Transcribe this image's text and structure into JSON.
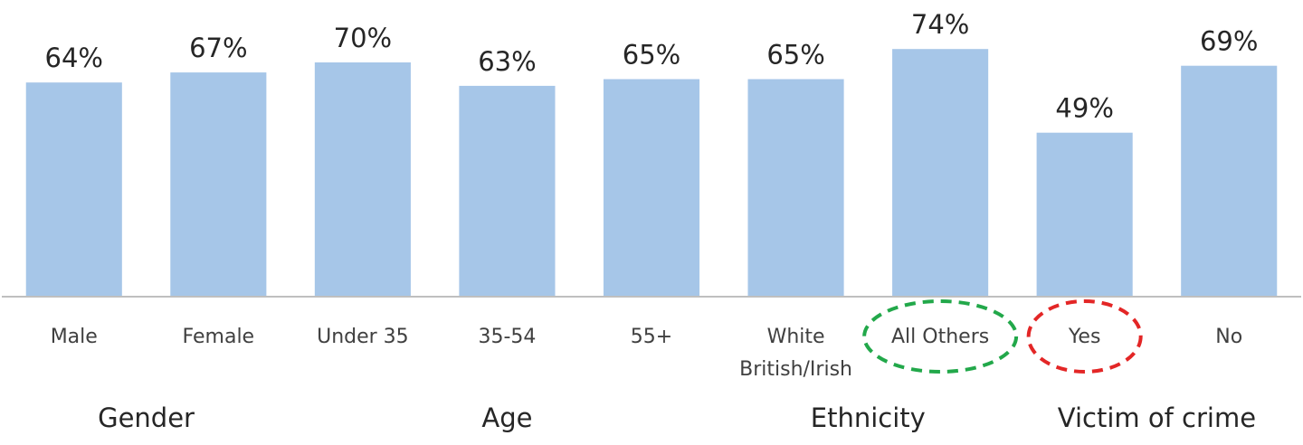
{
  "chart_data": {
    "type": "bar",
    "categories": [
      "Male",
      "Female",
      "Under 35",
      "35-54",
      "55+",
      "White British/Irish",
      "All Others",
      "Yes",
      "No"
    ],
    "category_lines": [
      [
        "Male"
      ],
      [
        "Female"
      ],
      [
        "Under 35"
      ],
      [
        "35-54"
      ],
      [
        "55+"
      ],
      [
        "White",
        "British/Irish"
      ],
      [
        "All Others"
      ],
      [
        "Yes"
      ],
      [
        "No"
      ]
    ],
    "values": [
      64,
      67,
      70,
      63,
      65,
      65,
      74,
      49,
      69
    ],
    "value_labels": [
      "64%",
      "67%",
      "70%",
      "63%",
      "65%",
      "65%",
      "74%",
      "49%",
      "69%"
    ],
    "groups": [
      {
        "label": "Gender",
        "categories": [
          "Male",
          "Female"
        ]
      },
      {
        "label": "Age",
        "categories": [
          "Under 35",
          "35-54",
          "55+"
        ]
      },
      {
        "label": "Ethnicity",
        "categories": [
          "White British/Irish",
          "All Others"
        ]
      },
      {
        "label": "Victim of crime",
        "categories": [
          "Yes",
          "No"
        ]
      }
    ],
    "highlights": [
      {
        "category": "All Others",
        "style": "dashed-ellipse",
        "color": "#22a84a"
      },
      {
        "category": "Yes",
        "style": "dashed-ellipse",
        "color": "#e32626"
      }
    ],
    "ylim": [
      0,
      100
    ],
    "bar_color": "#a6c6e8",
    "axis_color": "#bfbfbf",
    "grid": false,
    "legend": "none",
    "title": "",
    "xlabel": "",
    "ylabel": ""
  }
}
